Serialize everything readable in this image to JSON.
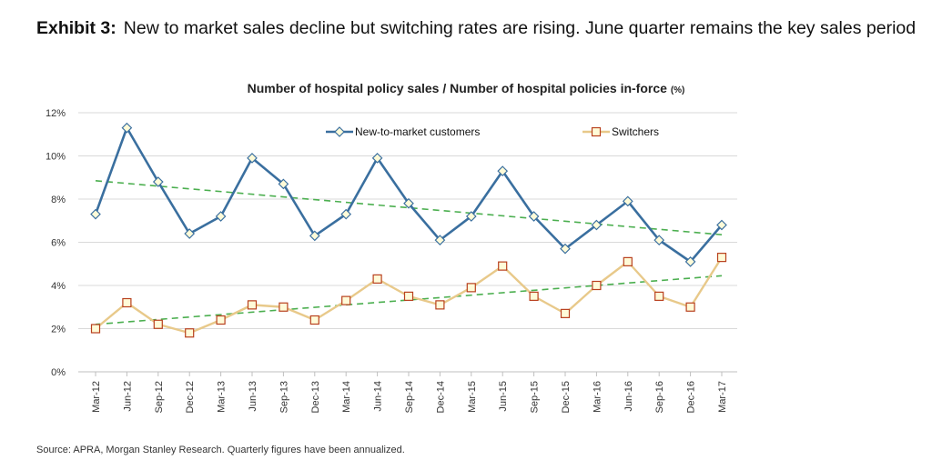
{
  "exhibit": {
    "label": "Exhibit 3:",
    "text": "New to market sales decline but switching rates are rising. June quarter remains the key sales period"
  },
  "source": "Source: APRA, Morgan Stanley Research. Quarterly figures have been annualized.",
  "chart_data": {
    "type": "line",
    "title": "Number of hospital policy sales / Number of hospital policies in-force",
    "title_unit": "(%)",
    "xlabel": "",
    "ylabel": "",
    "ylim": [
      0,
      12
    ],
    "yticks": [
      "0%",
      "2%",
      "4%",
      "6%",
      "8%",
      "10%",
      "12%"
    ],
    "grid": true,
    "legend_position": "top",
    "categories": [
      "Mar-12",
      "Jun-12",
      "Sep-12",
      "Dec-12",
      "Mar-13",
      "Jun-13",
      "Sep-13",
      "Dec-13",
      "Mar-14",
      "Jun-14",
      "Sep-14",
      "Dec-14",
      "Mar-15",
      "Jun-15",
      "Sep-15",
      "Dec-15",
      "Mar-16",
      "Jun-16",
      "Sep-16",
      "Dec-16",
      "Mar-17"
    ],
    "series": [
      {
        "name": "New-to-market customers",
        "color": "#3a6f9f",
        "marker": "diamond",
        "values": [
          7.3,
          11.3,
          8.8,
          6.4,
          7.2,
          9.9,
          8.7,
          6.3,
          7.3,
          9.9,
          7.8,
          6.1,
          7.2,
          9.3,
          7.2,
          5.7,
          6.8,
          7.9,
          6.1,
          5.1,
          6.8
        ]
      },
      {
        "name": "Switchers",
        "color": "#e8c98a",
        "marker": "square",
        "values": [
          2.0,
          3.2,
          2.2,
          1.8,
          2.4,
          3.1,
          3.0,
          2.4,
          3.3,
          4.3,
          3.5,
          3.1,
          3.9,
          4.9,
          3.5,
          2.7,
          4.0,
          5.1,
          3.5,
          3.0,
          5.3
        ]
      }
    ],
    "trendlines": [
      {
        "of": "New-to-market customers",
        "color": "#4caf50",
        "start": 8.85,
        "end": 6.35
      },
      {
        "of": "Switchers",
        "color": "#4caf50",
        "start": 2.2,
        "end": 4.45
      }
    ]
  }
}
